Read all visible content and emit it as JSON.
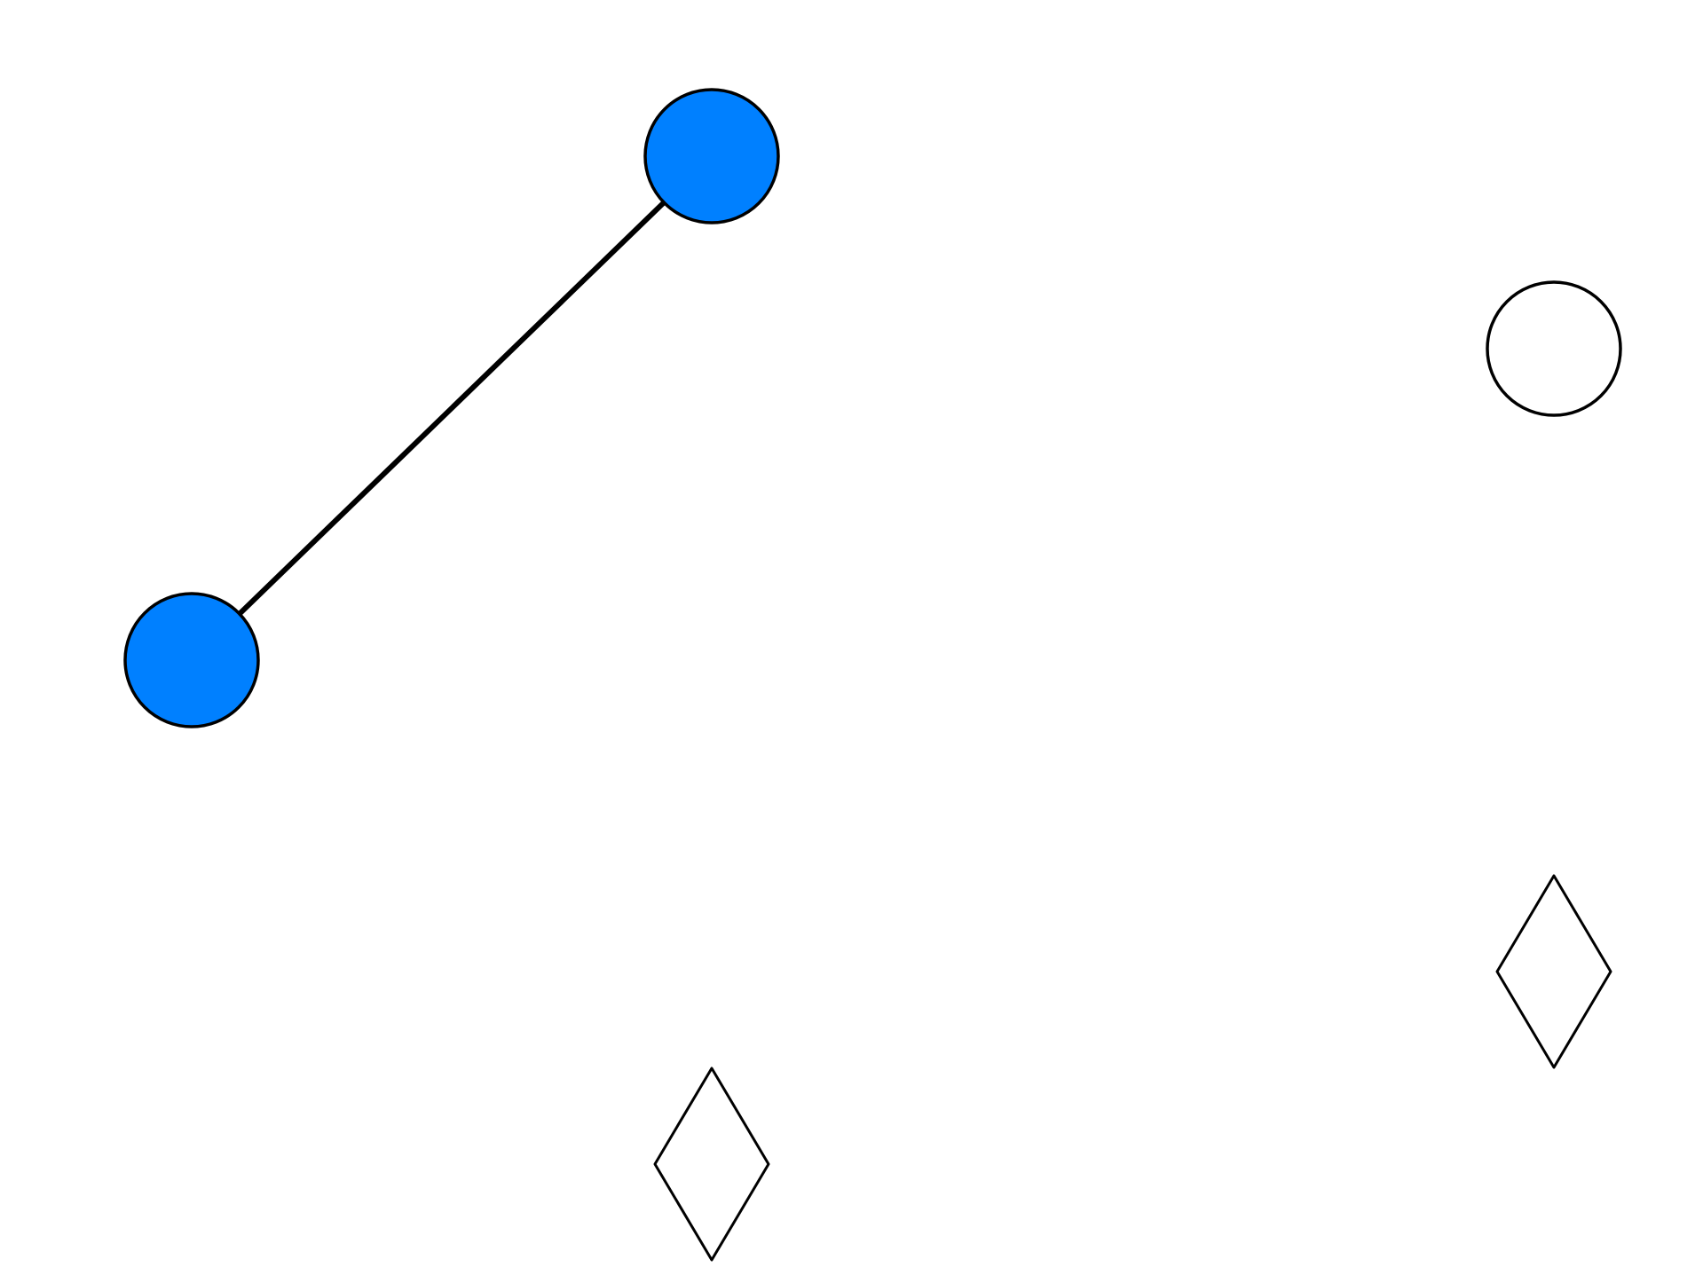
{
  "diagram": {
    "colors": {
      "selected_fill": "#0080ff",
      "unselected_fill": "#ffffff",
      "stroke": "#000000",
      "background": "#ffffff"
    },
    "nodes": [
      {
        "id": "node-a",
        "shape": "circle",
        "selected": true
      },
      {
        "id": "node-b",
        "shape": "circle",
        "selected": true
      },
      {
        "id": "node-c",
        "shape": "circle",
        "selected": false
      },
      {
        "id": "node-d",
        "shape": "diamond",
        "selected": false
      },
      {
        "id": "node-e",
        "shape": "diamond",
        "selected": false
      }
    ],
    "edges": [
      {
        "from": "node-a",
        "to": "node-b"
      }
    ]
  }
}
